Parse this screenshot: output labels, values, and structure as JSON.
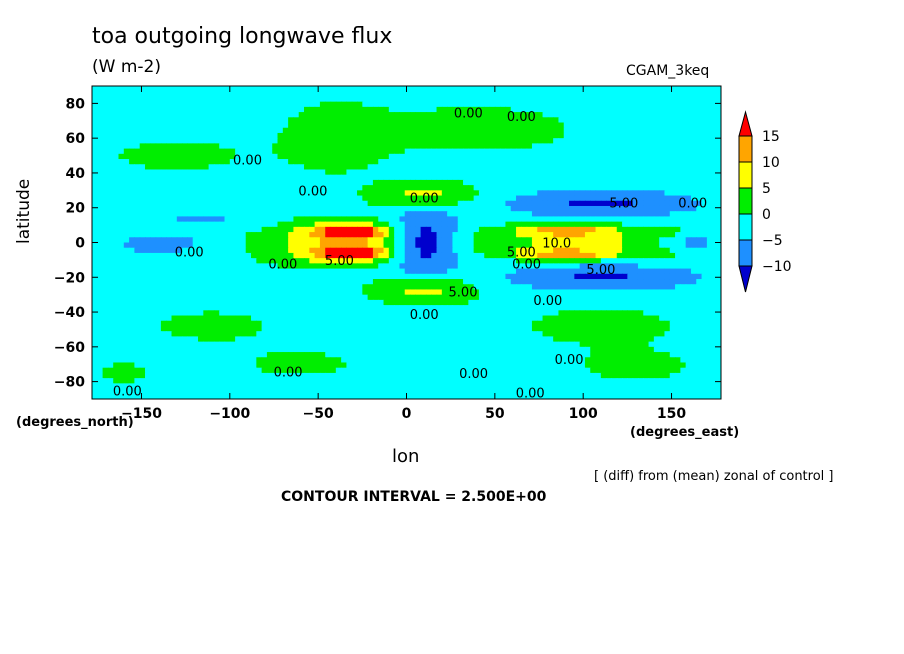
{
  "chart_data": {
    "type": "heatmap",
    "title": "toa outgoing longwave flux",
    "units": "(W m-2)",
    "run_label": "CGAM_3keq",
    "xlabel": "lon",
    "ylabel": "latitude",
    "xlabel_units": "(degrees_east)",
    "ylabel_units": "(degrees_north)",
    "note": "[ (diff) from (mean) zonal of control ]",
    "contour_interval_label": "CONTOUR INTERVAL = 2.500E+00",
    "xlim": [
      -178,
      178
    ],
    "ylim": [
      -90,
      90
    ],
    "x_ticks": [
      -150,
      -100,
      -50,
      0,
      50,
      100,
      150
    ],
    "y_ticks": [
      80,
      60,
      40,
      20,
      0,
      -20,
      -40,
      -60,
      -80
    ],
    "colorbar": {
      "levels": [
        "15",
        "10",
        "5",
        "0",
        "-5",
        "-10"
      ],
      "colors": [
        "#ff0000",
        "#ffa500",
        "#ffff00",
        "#00ee00",
        "#00ffff",
        "#1e90ff",
        "#0000cd"
      ]
    },
    "contour_labels": [
      {
        "text": "0.00",
        "lon": 35,
        "lat": 72
      },
      {
        "text": "0.00",
        "lon": 65,
        "lat": 70
      },
      {
        "text": "0.00",
        "lon": -90,
        "lat": 45
      },
      {
        "text": "0.00",
        "lon": -53,
        "lat": 27
      },
      {
        "text": "0.00",
        "lon": 10,
        "lat": 23
      },
      {
        "text": "5.00",
        "lon": 123,
        "lat": 20
      },
      {
        "text": "0.00",
        "lon": 162,
        "lat": 20
      },
      {
        "text": "10.0",
        "lon": 85,
        "lat": -3
      },
      {
        "text": "5.00",
        "lon": 65,
        "lat": -8
      },
      {
        "text": "0.00",
        "lon": -123,
        "lat": -8
      },
      {
        "text": "5.00",
        "lon": -38,
        "lat": -13
      },
      {
        "text": "0.00",
        "lon": -70,
        "lat": -15
      },
      {
        "text": "0.00",
        "lon": 68,
        "lat": -15
      },
      {
        "text": "5.00",
        "lon": 110,
        "lat": -18
      },
      {
        "text": "5.00",
        "lon": 32,
        "lat": -31
      },
      {
        "text": "0.00",
        "lon": 80,
        "lat": -36
      },
      {
        "text": "0.00",
        "lon": 10,
        "lat": -44
      },
      {
        "text": "0.00",
        "lon": 92,
        "lat": -70
      },
      {
        "text": "0.00",
        "lon": -67,
        "lat": -77
      },
      {
        "text": "0.00",
        "lon": 38,
        "lat": -78
      },
      {
        "text": "0.00",
        "lon": -158,
        "lat": -88
      },
      {
        "text": "0.00",
        "lon": 70,
        "lat": -89
      }
    ],
    "anomaly_features": [
      {
        "lon": -30,
        "lat": 6,
        "rlon": 20,
        "rlat": 4,
        "value": 16
      },
      {
        "lon": -30,
        "lat": -6,
        "rlon": 20,
        "rlat": 4,
        "value": 16
      },
      {
        "lon": -40,
        "lat": 6,
        "rlon": 40,
        "rlat": 8,
        "value": 9
      },
      {
        "lon": -40,
        "lat": -6,
        "rlon": 40,
        "rlat": 8,
        "value": 9
      },
      {
        "lon": 10,
        "lat": 27,
        "rlon": 28,
        "rlat": 8,
        "value": 10
      },
      {
        "lon": 10,
        "lat": -27,
        "rlon": 28,
        "rlat": 8,
        "value": 10
      },
      {
        "lon": 10,
        "lat": 0,
        "rlon": 20,
        "rlat": 20,
        "value": -13
      },
      {
        "lon": 98,
        "lat": 0,
        "rlon": 70,
        "rlat": 10,
        "value": 8
      },
      {
        "lon": 90,
        "lat": 7,
        "rlon": 25,
        "rlat": 3,
        "value": 13
      },
      {
        "lon": 90,
        "lat": -7,
        "rlon": 25,
        "rlat": 3,
        "value": 13
      },
      {
        "lon": 110,
        "lat": 22,
        "rlon": 55,
        "rlat": 8,
        "value": -9
      },
      {
        "lon": 110,
        "lat": -20,
        "rlon": 55,
        "rlat": 8,
        "value": -9
      },
      {
        "lon": 162,
        "lat": 0,
        "rlon": 20,
        "rlat": 4,
        "value": -8
      },
      {
        "lon": -140,
        "lat": 0,
        "rlon": 22,
        "rlat": 6,
        "value": -9
      },
      {
        "lon": -145,
        "lat": 10,
        "rlon": 30,
        "rlat": 10,
        "value": 4
      },
      {
        "lon": -140,
        "lat": 20,
        "rlon": 30,
        "rlat": 6,
        "value": -4
      },
      {
        "lon": -125,
        "lat": 12,
        "rlon": 45,
        "rlat": 5,
        "value": -5
      },
      {
        "lon": -40,
        "lat": 60,
        "rlon": 30,
        "rlat": 20,
        "value": 5
      },
      {
        "lon": 40,
        "lat": 65,
        "rlon": 60,
        "rlat": 15,
        "value": 4
      },
      {
        "lon": -130,
        "lat": 50,
        "rlon": 50,
        "rlat": 12,
        "value": 3
      },
      {
        "lon": 110,
        "lat": -48,
        "rlon": 60,
        "rlat": 15,
        "value": 3
      },
      {
        "lon": -110,
        "lat": -48,
        "rlon": 45,
        "rlat": 12,
        "value": 3
      },
      {
        "lon": -60,
        "lat": -70,
        "rlon": 40,
        "rlat": 10,
        "value": 3
      },
      {
        "lon": 130,
        "lat": -72,
        "rlon": 40,
        "rlat": 10,
        "value": 3
      },
      {
        "lon": -160,
        "lat": -75,
        "rlon": 20,
        "rlat": 8,
        "value": 3
      }
    ],
    "background_value": -2
  }
}
